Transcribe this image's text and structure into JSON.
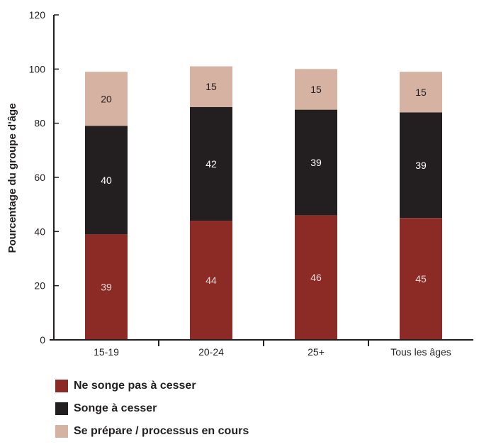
{
  "chart_data": {
    "type": "bar",
    "stacked": true,
    "categories": [
      "15-19",
      "20-24",
      "25+",
      "Tous les âges"
    ],
    "series": [
      {
        "name": "Ne songe pas à cesser",
        "values": [
          39,
          44,
          46,
          45
        ],
        "color": "#8c2a26",
        "label_color": "#f0dcd8"
      },
      {
        "name": "Songe à cesser",
        "values": [
          40,
          42,
          39,
          39
        ],
        "color": "#231f20",
        "label_color": "#ffffff"
      },
      {
        "name": "Se prépare / processus en cours",
        "values": [
          20,
          15,
          15,
          15
        ],
        "color": "#d6b2a3",
        "label_color": "#231f20"
      }
    ],
    "ylabel": "Pourcentage du groupe d'âge",
    "ylim": [
      0,
      120
    ],
    "yticks": [
      "0",
      "20",
      "40",
      "60",
      "80",
      "100",
      "120"
    ],
    "grid": false,
    "legend_position": "bottom-left"
  }
}
